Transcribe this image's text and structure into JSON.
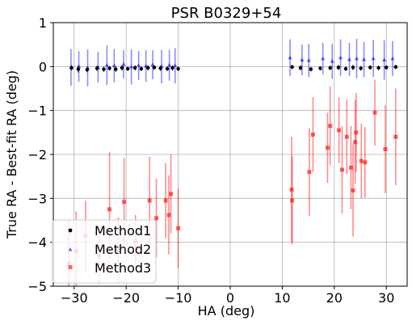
{
  "chart_data": {
    "type": "scatter",
    "title": "PSR B0329+54",
    "xlabel": "HA (deg)",
    "ylabel": "True RA - Best-fit RA (deg)",
    "xlim": [
      -34,
      34
    ],
    "ylim": [
      -5,
      1
    ],
    "xticks": [
      -30,
      -20,
      -10,
      0,
      10,
      20,
      30
    ],
    "xtick_labels": [
      "−30",
      "−20",
      "−10",
      "0",
      "10",
      "20",
      "30"
    ],
    "yticks": [
      -5,
      -4,
      -3,
      -2,
      -1,
      0,
      1
    ],
    "ytick_labels": [
      "−5",
      "−4",
      "−3",
      "−2",
      "−1",
      "0",
      "1"
    ],
    "grid": true,
    "legend_position": "lower-left",
    "series": [
      {
        "name": "Method1",
        "color": "#000000",
        "marker": "circle",
        "points": [
          {
            "x": -30.5,
            "y": -0.03,
            "err": 0.06
          },
          {
            "x": -29.2,
            "y": -0.06,
            "err": 0.08
          },
          {
            "x": -27.5,
            "y": -0.07,
            "err": 0.06
          },
          {
            "x": -25.6,
            "y": -0.04,
            "err": 0.06
          },
          {
            "x": -24.3,
            "y": -0.06,
            "err": 0.06
          },
          {
            "x": -23.2,
            "y": -0.04,
            "err": 0.05
          },
          {
            "x": -22.0,
            "y": -0.06,
            "err": 0.06
          },
          {
            "x": -20.8,
            "y": -0.03,
            "err": 0.06
          },
          {
            "x": -19.7,
            "y": -0.05,
            "err": 0.05
          },
          {
            "x": -18.3,
            "y": -0.03,
            "err": 0.06
          },
          {
            "x": -17.1,
            "y": -0.05,
            "err": 0.05
          },
          {
            "x": -15.8,
            "y": -0.03,
            "err": 0.06
          },
          {
            "x": -14.6,
            "y": -0.02,
            "err": 0.05
          },
          {
            "x": -13.4,
            "y": -0.04,
            "err": 0.06
          },
          {
            "x": -12.1,
            "y": -0.05,
            "err": 0.05
          },
          {
            "x": -11.1,
            "y": -0.03,
            "err": 0.06
          },
          {
            "x": -10.0,
            "y": -0.05,
            "err": 0.05
          },
          {
            "x": 11.9,
            "y": -0.01,
            "err": 0.05
          },
          {
            "x": 13.5,
            "y": -0.03,
            "err": 0.06
          },
          {
            "x": 15.5,
            "y": -0.06,
            "err": 0.05
          },
          {
            "x": 17.3,
            "y": -0.04,
            "err": 0.05
          },
          {
            "x": 19.2,
            "y": -0.03,
            "err": 0.05
          },
          {
            "x": 20.8,
            "y": -0.02,
            "err": 0.06
          },
          {
            "x": 22.2,
            "y": -0.05,
            "err": 0.05
          },
          {
            "x": 23.6,
            "y": -0.02,
            "err": 0.06
          },
          {
            "x": 25.1,
            "y": -0.04,
            "err": 0.05
          },
          {
            "x": 26.9,
            "y": -0.02,
            "err": 0.05
          },
          {
            "x": 28.5,
            "y": -0.03,
            "err": 0.05
          },
          {
            "x": 30.0,
            "y": -0.02,
            "err": 0.05
          },
          {
            "x": 31.8,
            "y": -0.01,
            "err": 0.05
          }
        ]
      },
      {
        "name": "Method2",
        "color": "#0000ff",
        "marker": "triangle",
        "points": [
          {
            "x": -30.6,
            "y": -0.02,
            "err": 0.42
          },
          {
            "x": -29.1,
            "y": 0.0,
            "err": 0.35
          },
          {
            "x": -27.4,
            "y": -0.03,
            "err": 0.42
          },
          {
            "x": -25.4,
            "y": -0.02,
            "err": 0.35
          },
          {
            "x": -23.7,
            "y": 0.03,
            "err": 0.45
          },
          {
            "x": -22.3,
            "y": 0.02,
            "err": 0.38
          },
          {
            "x": -20.5,
            "y": 0.05,
            "err": 0.32
          },
          {
            "x": -19.0,
            "y": -0.01,
            "err": 0.4
          },
          {
            "x": -17.6,
            "y": 0.02,
            "err": 0.33
          },
          {
            "x": -16.2,
            "y": 0.01,
            "err": 0.36
          },
          {
            "x": -14.9,
            "y": 0.04,
            "err": 0.33
          },
          {
            "x": -13.2,
            "y": 0.0,
            "err": 0.38
          },
          {
            "x": -11.7,
            "y": 0.03,
            "err": 0.35
          },
          {
            "x": -10.6,
            "y": 0.02,
            "err": 0.4
          },
          {
            "x": 11.5,
            "y": 0.2,
            "err": 0.42
          },
          {
            "x": 13.8,
            "y": 0.15,
            "err": 0.35
          },
          {
            "x": 15.1,
            "y": 0.14,
            "err": 0.38
          },
          {
            "x": 17.8,
            "y": 0.18,
            "err": 0.36
          },
          {
            "x": 19.6,
            "y": 0.12,
            "err": 0.4
          },
          {
            "x": 21.2,
            "y": 0.2,
            "err": 0.42
          },
          {
            "x": 22.9,
            "y": 0.16,
            "err": 0.38
          },
          {
            "x": 24.3,
            "y": 0.18,
            "err": 0.45
          },
          {
            "x": 25.7,
            "y": 0.16,
            "err": 0.4
          },
          {
            "x": 27.5,
            "y": 0.18,
            "err": 0.42
          },
          {
            "x": 29.6,
            "y": 0.15,
            "err": 0.45
          },
          {
            "x": 31.2,
            "y": 0.18,
            "err": 0.4
          }
        ]
      },
      {
        "name": "Method3",
        "color": "#ff0000",
        "marker": "square",
        "points": [
          {
            "x": -31.0,
            "y": -4.48,
            "err": 1.0
          },
          {
            "x": -29.6,
            "y": -4.2,
            "err": 0.9
          },
          {
            "x": -27.8,
            "y": -3.85,
            "err": 0.8
          },
          {
            "x": -25.2,
            "y": -4.3,
            "err": 0.65
          },
          {
            "x": -23.2,
            "y": -3.25,
            "err": 1.3
          },
          {
            "x": -21.5,
            "y": -4.18,
            "err": 0.75
          },
          {
            "x": -20.4,
            "y": -3.08,
            "err": 1.0
          },
          {
            "x": -18.2,
            "y": -3.98,
            "err": 0.6
          },
          {
            "x": -15.5,
            "y": -3.05,
            "err": 1.0
          },
          {
            "x": -14.2,
            "y": -3.45,
            "err": 0.9
          },
          {
            "x": -12.4,
            "y": -3.05,
            "err": 0.85
          },
          {
            "x": -11.8,
            "y": -3.38,
            "err": 0.9
          },
          {
            "x": -11.4,
            "y": -2.9,
            "err": 0.9
          },
          {
            "x": -10.0,
            "y": -3.68,
            "err": 0.9
          },
          {
            "x": 11.8,
            "y": -2.8,
            "err": 1.2
          },
          {
            "x": 11.9,
            "y": -3.05,
            "err": 1.0
          },
          {
            "x": 15.2,
            "y": -2.4,
            "err": 1.0
          },
          {
            "x": 15.9,
            "y": -1.55,
            "err": 0.85
          },
          {
            "x": 18.7,
            "y": -1.85,
            "err": 0.8
          },
          {
            "x": 19.2,
            "y": -1.35,
            "err": 0.9
          },
          {
            "x": 20.9,
            "y": -1.45,
            "err": 0.75
          },
          {
            "x": 21.5,
            "y": -2.35,
            "err": 1.0
          },
          {
            "x": 22.4,
            "y": -1.6,
            "err": 0.85
          },
          {
            "x": 23.2,
            "y": -2.3,
            "err": 0.95
          },
          {
            "x": 23.6,
            "y": -2.82,
            "err": 1.05
          },
          {
            "x": 24.0,
            "y": -1.72,
            "err": 0.95
          },
          {
            "x": 24.2,
            "y": -1.5,
            "err": 0.9
          },
          {
            "x": 25.2,
            "y": -2.15,
            "err": 0.85
          },
          {
            "x": 25.9,
            "y": -2.18,
            "err": 0.8
          },
          {
            "x": 27.8,
            "y": -1.05,
            "err": 0.75
          },
          {
            "x": 29.8,
            "y": -1.88,
            "err": 1.0
          },
          {
            "x": 31.8,
            "y": -1.6,
            "err": 1.1
          }
        ]
      }
    ]
  }
}
